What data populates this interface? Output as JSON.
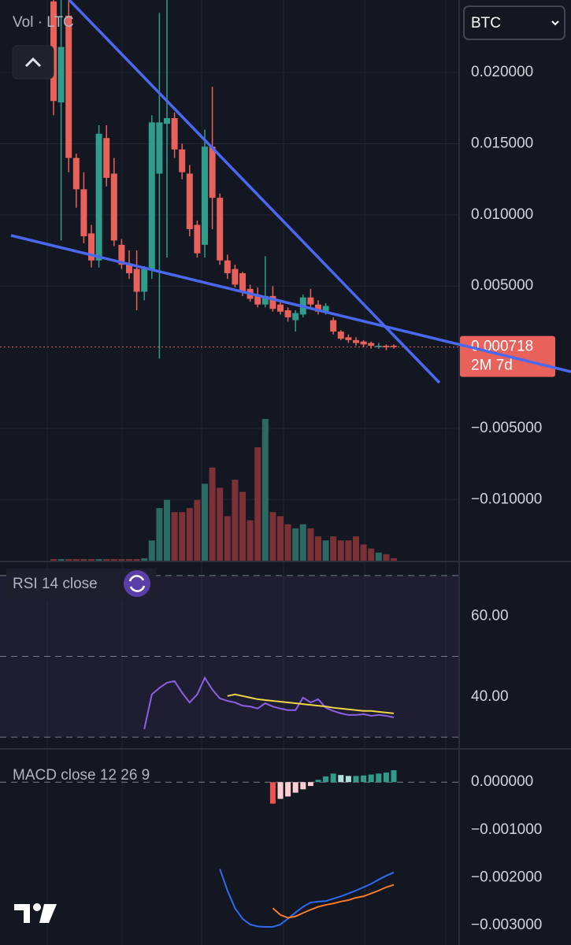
{
  "ui": {
    "currency": "BTC"
  },
  "chart_data": [
    {
      "type": "candlestick",
      "title": "Vol · LTC",
      "open": [
        0.025,
        0.0179,
        0.024,
        0.014,
        0.0118,
        0.0087,
        0.0068,
        0.0154,
        0.0129,
        0.0079,
        0.0065,
        0.0062,
        0.0046,
        0.0062,
        0.0129,
        0.0164,
        0.0168,
        0.0146,
        0.0129,
        0.0093,
        0.0079,
        0.0148,
        0.0112,
        0.0068,
        0.0062,
        0.0059,
        0.0048,
        0.0044,
        0.0037,
        0.0043,
        0.0037,
        0.0033,
        0.0026,
        0.003,
        0.0042,
        0.0037,
        0.0032,
        0.0026,
        0.0018,
        0.0014,
        0.0012,
        0.0011,
        0.001,
        0.0007,
        0.0008,
        0.0008
      ],
      "high": [
        0.0251,
        0.0251,
        0.0251,
        0.0143,
        0.013,
        0.0093,
        0.0163,
        0.0163,
        0.014,
        0.0083,
        0.0075,
        0.0075,
        0.0064,
        0.017,
        0.0242,
        0.0251,
        0.0172,
        0.015,
        0.0135,
        0.0096,
        0.016,
        0.019,
        0.0115,
        0.0072,
        0.0065,
        0.006,
        0.0051,
        0.0049,
        0.0071,
        0.005,
        0.004,
        0.0035,
        0.0033,
        0.0044,
        0.0048,
        0.004,
        0.0038,
        0.0028,
        0.0019,
        0.0016,
        0.0014,
        0.0012,
        0.0011,
        0.001,
        0.0009,
        0.0009
      ],
      "low": [
        0.017,
        0.0082,
        0.013,
        0.0105,
        0.008,
        0.0063,
        0.0063,
        0.012,
        0.0078,
        0.0062,
        0.0055,
        0.0033,
        0.004,
        0.0055,
        -0.0001,
        0.007,
        0.014,
        0.0125,
        0.0085,
        0.007,
        0.007,
        0.009,
        0.0065,
        0.0055,
        0.0049,
        0.0043,
        0.0039,
        0.0035,
        0.0035,
        0.0032,
        0.003,
        0.0025,
        0.0018,
        0.0028,
        0.0035,
        0.003,
        0.003,
        0.0016,
        0.0012,
        0.001,
        0.0008,
        0.0007,
        0.0006,
        0.0006,
        0.0005,
        0.0006
      ],
      "close": [
        0.018,
        0.0218,
        0.014,
        0.0118,
        0.0085,
        0.0068,
        0.0157,
        0.0126,
        0.0082,
        0.0065,
        0.0059,
        0.0046,
        0.0062,
        0.0165,
        0.0165,
        0.0168,
        0.0146,
        0.013,
        0.009,
        0.0073,
        0.0148,
        0.0112,
        0.0068,
        0.0059,
        0.0051,
        0.0046,
        0.0041,
        0.0037,
        0.0043,
        0.0034,
        0.0032,
        0.0028,
        0.0031,
        0.0042,
        0.0037,
        0.0032,
        0.0036,
        0.0018,
        0.0013,
        0.0012,
        0.001,
        0.0009,
        0.0008,
        0.0008,
        0.0007,
        0.000718
      ],
      "volume": [
        2,
        2,
        2,
        2,
        2,
        2,
        2,
        2,
        2,
        2,
        2,
        2,
        3,
        25,
        65,
        75,
        60,
        60,
        65,
        75,
        95,
        115,
        90,
        55,
        100,
        85,
        50,
        140,
        175,
        60,
        55,
        45,
        40,
        45,
        40,
        30,
        25,
        30,
        25,
        25,
        30,
        20,
        15,
        10,
        8,
        3
      ],
      "up_color": "#2f9c8c",
      "down_color": "#e8615b",
      "volume_up_color": "#2b6a63",
      "volume_down_color": "#7b3136",
      "ylim": [
        -0.0143,
        0.0251
      ],
      "yticks": [
        {
          "value": 0.02,
          "label": "0.020000"
        },
        {
          "value": 0.015,
          "label": "0.015000"
        },
        {
          "value": 0.01,
          "label": "0.010000"
        },
        {
          "value": 0.005,
          "label": "0.005000"
        },
        {
          "value": -0.005,
          "label": "−0.005000"
        },
        {
          "value": -0.01,
          "label": "−0.010000"
        }
      ],
      "last_price": 0.000718,
      "countdown": "2M 7d",
      "grid": true
    },
    {
      "type": "line",
      "title": "RSI 14 close",
      "series": [
        {
          "color": "#8a62e0",
          "values": [
            null,
            null,
            null,
            null,
            null,
            null,
            null,
            null,
            null,
            null,
            null,
            null,
            32.0,
            40.6,
            42.2,
            43.5,
            43.9,
            41.0,
            38.6,
            40.6,
            44.7,
            41.8,
            39.6,
            39.0,
            38.6,
            37.8,
            37.6,
            37.1,
            38.4,
            37.6,
            37.1,
            36.7,
            36.7,
            39.8,
            38.6,
            39.4,
            37.3,
            36.5,
            35.9,
            35.5,
            35.5,
            35.7,
            35.3,
            35.5,
            35.3,
            34.9
          ]
        },
        {
          "color": "#f0d54a",
          "values": [
            null,
            null,
            null,
            null,
            null,
            null,
            null,
            null,
            null,
            null,
            null,
            null,
            null,
            null,
            null,
            null,
            null,
            null,
            null,
            null,
            null,
            null,
            null,
            40.2,
            40.6,
            40.2,
            39.8,
            39.4,
            39.2,
            39.0,
            38.8,
            38.6,
            38.4,
            38.2,
            38.0,
            37.8,
            37.6,
            37.3,
            37.1,
            36.9,
            36.7,
            36.5,
            36.5,
            36.3,
            36.1,
            35.9
          ]
        }
      ],
      "levels": [
        70,
        50,
        30
      ],
      "ylim": [
        27.3,
        73.3
      ],
      "yticks": [
        {
          "value": 60,
          "label": "60.00"
        },
        {
          "value": 40,
          "label": "40.00"
        }
      ]
    },
    {
      "type": "macd",
      "title": "MACD close 12 26 9",
      "histogram": [
        null,
        null,
        null,
        null,
        null,
        null,
        null,
        null,
        null,
        null,
        null,
        null,
        null,
        null,
        null,
        null,
        null,
        null,
        null,
        null,
        null,
        null,
        null,
        null,
        null,
        null,
        null,
        null,
        null,
        -0.00045,
        -0.00035,
        -0.0003,
        -0.00022,
        -0.00015,
        -8e-05,
        5e-05,
        0.00012,
        0.00018,
        0.00015,
        0.00013,
        0.00013,
        0.00014,
        0.00016,
        0.00018,
        0.0002,
        0.00025
      ],
      "histogram_colors": {
        "up_grow": "#2f9c8c",
        "up_fall": "#b2dfdb",
        "down_grow": "#ef5350",
        "down_fall": "#ffcdd2"
      },
      "series": [
        {
          "color": "#2f6bf0",
          "values": [
            null,
            null,
            null,
            null,
            null,
            null,
            null,
            null,
            null,
            null,
            null,
            null,
            null,
            null,
            null,
            null,
            null,
            null,
            null,
            null,
            null,
            null,
            -0.00182,
            -0.00227,
            -0.00264,
            -0.00286,
            -0.00298,
            -0.00302,
            -0.00303,
            -0.00303,
            -0.00298,
            -0.00286,
            -0.00273,
            -0.00261,
            -0.00252,
            -0.0025,
            -0.00249,
            -0.00244,
            -0.00239,
            -0.00233,
            -0.00227,
            -0.0022,
            -0.00213,
            -0.00204,
            -0.00196,
            -0.00189
          ]
        },
        {
          "color": "#f57c2a",
          "values": [
            null,
            null,
            null,
            null,
            null,
            null,
            null,
            null,
            null,
            null,
            null,
            null,
            null,
            null,
            null,
            null,
            null,
            null,
            null,
            null,
            null,
            null,
            null,
            null,
            null,
            null,
            null,
            null,
            null,
            -0.00264,
            -0.00278,
            -0.00284,
            -0.00281,
            -0.00274,
            -0.00267,
            -0.00261,
            -0.00257,
            -0.00254,
            -0.0025,
            -0.00247,
            -0.00242,
            -0.00239,
            -0.00233,
            -0.00227,
            -0.0022,
            -0.00215
          ]
        }
      ],
      "ylim": [
        -0.00341,
        0.00068
      ],
      "yticks": [
        {
          "value": 0,
          "label": "0.000000"
        },
        {
          "value": -0.001,
          "label": "−0.001000"
        },
        {
          "value": -0.002,
          "label": "−0.002000"
        },
        {
          "value": -0.003,
          "label": "−0.003000"
        }
      ]
    }
  ]
}
